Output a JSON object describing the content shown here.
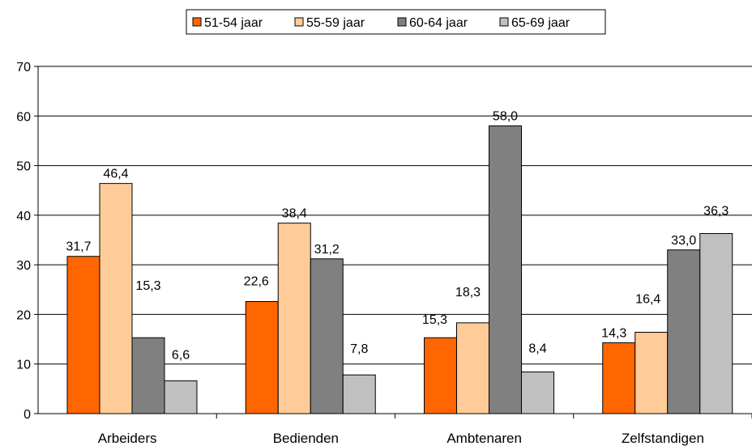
{
  "chart_data": {
    "type": "bar",
    "categories": [
      "Arbeiders",
      "Bedienden",
      "Ambtenaren",
      "Zelfstandigen"
    ],
    "series": [
      {
        "name": "51-54 jaar",
        "values": [
          31.7,
          22.6,
          15.3,
          14.3
        ],
        "labels": [
          "31,7",
          "22,6",
          "15,3",
          "14,3"
        ]
      },
      {
        "name": "55-59 jaar",
        "values": [
          46.4,
          38.4,
          18.3,
          16.4
        ],
        "labels": [
          "46,4",
          "38,4",
          "18,3",
          "16,4"
        ]
      },
      {
        "name": "60-64 jaar",
        "values": [
          15.3,
          31.2,
          58.0,
          33.0
        ],
        "labels": [
          "15,3",
          "31,2",
          "58,0",
          "33,0"
        ]
      },
      {
        "name": "65-69 jaar",
        "values": [
          6.6,
          7.8,
          8.4,
          36.3
        ],
        "labels": [
          "6,6",
          "7,8",
          "8,4",
          "36,3"
        ]
      }
    ],
    "colors": [
      "#ff6600",
      "#ffcc99",
      "#808080",
      "#c0c0c0"
    ],
    "ylim": [
      0,
      70
    ],
    "yticks": [
      0,
      10,
      20,
      30,
      40,
      50,
      60,
      70
    ],
    "grid": true,
    "legend_position": "top-center",
    "title": "",
    "xlabel": "",
    "ylabel": ""
  }
}
